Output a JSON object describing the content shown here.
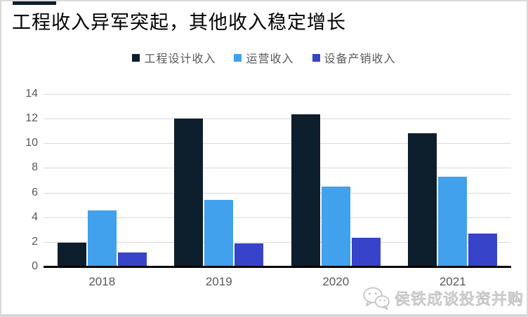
{
  "title": "工程收入异军突起，其他收入稳定增长",
  "watermark": {
    "icon": "wechat-icon",
    "text": "侯铁成谈投资并购"
  },
  "colors": {
    "series_engineering": "#0d1e2d",
    "series_operation": "#41a1ec",
    "series_equipment": "#3743c8",
    "gridline": "#d9d9d9",
    "axis_line": "#000000",
    "tick_text": "#595959",
    "title_text": "#000000"
  },
  "chart_data": {
    "type": "bar",
    "title": "工程收入异军突起，其他收入稳定增长",
    "categories": [
      "2018",
      "2019",
      "2020",
      "2021"
    ],
    "series": [
      {
        "name": "工程设计收入",
        "color": "#0d1e2d",
        "values": [
          1.95,
          12.0,
          12.35,
          10.8
        ]
      },
      {
        "name": "运营收入",
        "color": "#41a1ec",
        "values": [
          4.55,
          5.4,
          6.5,
          7.3
        ]
      },
      {
        "name": "设备产销收入",
        "color": "#3743c8",
        "values": [
          1.15,
          1.85,
          2.35,
          2.65
        ]
      }
    ],
    "xlabel": "",
    "ylabel": "",
    "ylim": [
      0,
      14
    ],
    "yticks": [
      0,
      2,
      4,
      6,
      8,
      10,
      12,
      14
    ],
    "grid": true,
    "legend_position": "top-center"
  }
}
